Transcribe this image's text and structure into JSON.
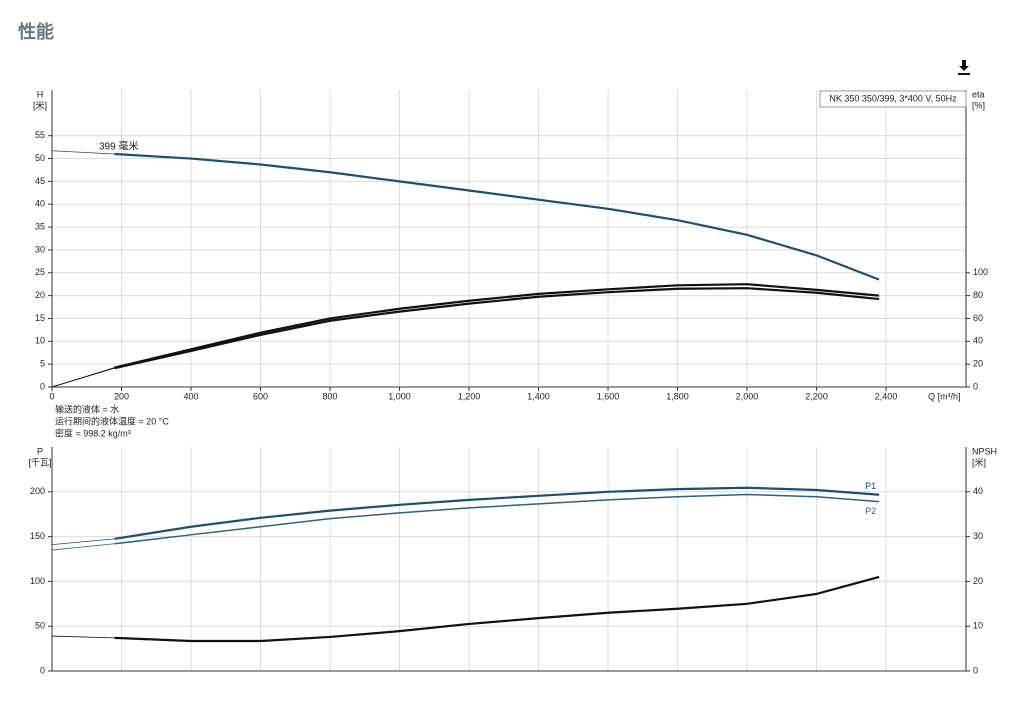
{
  "page_title": "性能",
  "chart_data": [
    {
      "type": "line",
      "ylabel": "H",
      "ylabel_unit": "[米]",
      "y2label": "eta",
      "y2label_unit": "[%]",
      "xlabel": "Q [m³/h]",
      "legend_title": "NK 350 350/399, 3*400 V, 50Hz",
      "annotations": [
        "399 毫米"
      ],
      "notes": [
        "输送的液体 = 水",
        "运行期间的液体温度 = 20 °C",
        "密度 = 998.2 kg/m³"
      ],
      "grid": true,
      "xlim": [
        0,
        2630
      ],
      "xticks": [
        0,
        200,
        400,
        600,
        800,
        {
          "value": 1000,
          "label": "1,000"
        },
        {
          "value": 1200,
          "label": "1,200"
        },
        {
          "value": 1400,
          "label": "1,400"
        },
        {
          "value": 1600,
          "label": "1,600"
        },
        {
          "value": 1800,
          "label": "1,800"
        },
        {
          "value": 2000,
          "label": "2,000"
        },
        {
          "value": 2200,
          "label": "2,200"
        },
        {
          "value": 2400,
          "label": "2,400"
        }
      ],
      "ylim": [
        0,
        65
      ],
      "yticks": [
        0,
        5,
        10,
        15,
        20,
        25,
        30,
        35,
        40,
        45,
        50,
        55
      ],
      "y2lim": [
        0,
        260
      ],
      "y2ticks": [
        0,
        20,
        40,
        60,
        80,
        100
      ],
      "x": [
        0,
        180,
        400,
        600,
        800,
        1000,
        1200,
        1400,
        1600,
        1800,
        2000,
        2200,
        2380
      ],
      "series": [
        {
          "color": "#1c4f73",
          "values": [
            51.7,
            51,
            50,
            48.7,
            47,
            45,
            43,
            41,
            39,
            36.5,
            33.3,
            28.8,
            23.5
          ]
        },
        {
          "color": "#111111",
          "axis": "y2",
          "values": [
            0,
            17,
            33,
            47.5,
            60,
            68.5,
            75.5,
            81.5,
            85.5,
            89,
            90,
            85,
            80
          ]
        },
        {
          "color": "#111111",
          "axis": "y2",
          "values": [
            0,
            16.5,
            31.6,
            45.6,
            58,
            66,
            73,
            79,
            83,
            86,
            86.5,
            82.5,
            77
          ]
        }
      ]
    },
    {
      "type": "line",
      "ylabel": "P",
      "ylabel_unit": "[千瓦]",
      "y2label": "NPSH",
      "y2label_unit": "[米]",
      "grid": true,
      "xlim": [
        0,
        2630
      ],
      "xticks": [
        0,
        200,
        400,
        600,
        800,
        1000,
        1200,
        1400,
        1600,
        1800,
        2000,
        2200,
        2400
      ],
      "ylim": [
        0,
        250
      ],
      "yticks": [
        0,
        50,
        100,
        150,
        200
      ],
      "y2lim": [
        0,
        50
      ],
      "y2ticks": [
        0,
        10,
        20,
        30,
        40
      ],
      "x": [
        0,
        180,
        400,
        600,
        800,
        1000,
        1200,
        1400,
        1600,
        1800,
        2000,
        2200,
        2380
      ],
      "series": [
        {
          "name": "P1",
          "color": "#1c4f73",
          "values": [
            141,
            147.5,
            161,
            171,
            179,
            185.5,
            191,
            195.5,
            200,
            203,
            204.5,
            202,
            196.7
          ]
        },
        {
          "name": "P2",
          "color": "#2b6283",
          "values": [
            135,
            142,
            152,
            161,
            170,
            176.5,
            182,
            186.5,
            191,
            194.5,
            197,
            194.5,
            189
          ]
        },
        {
          "color": "#111111",
          "axis": "y2",
          "values": [
            7.8,
            7.4,
            6.7,
            6.7,
            7.6,
            8.9,
            10.5,
            11.8,
            13,
            13.9,
            15,
            17.2,
            21
          ]
        }
      ]
    }
  ]
}
